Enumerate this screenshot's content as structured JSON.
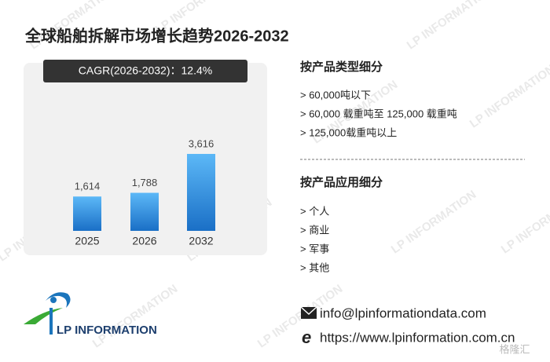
{
  "chart_data": {
    "type": "bar",
    "title": "全球船舶拆解市场增长趋势2026-2032",
    "subtitle": "CAGR(2026-2032)：12.4%",
    "categories": [
      "2025",
      "2026",
      "2032"
    ],
    "values": [
      1614,
      1788,
      3616
    ],
    "value_labels": [
      "1,614",
      "1,788",
      "3,616"
    ],
    "color": "#2a8ee0"
  },
  "segments": {
    "by_type": {
      "title": "按产品类型细分",
      "items": [
        "> 60,000吨以下",
        "> 60,000 载重吨至 125,000 载重吨",
        "> 125,000载重吨以上"
      ]
    },
    "by_application": {
      "title": "按产品应用细分",
      "items": [
        "> 个人",
        "> 商业",
        "> 军事",
        "> 其他"
      ]
    }
  },
  "contact": {
    "email": "info@lpinformationdata.com",
    "website": "https://www.lpinformation.com.cn"
  },
  "logo": "LP INFORMATION",
  "watermark": "LP INFORMATION",
  "corner_mark": "格隆汇"
}
